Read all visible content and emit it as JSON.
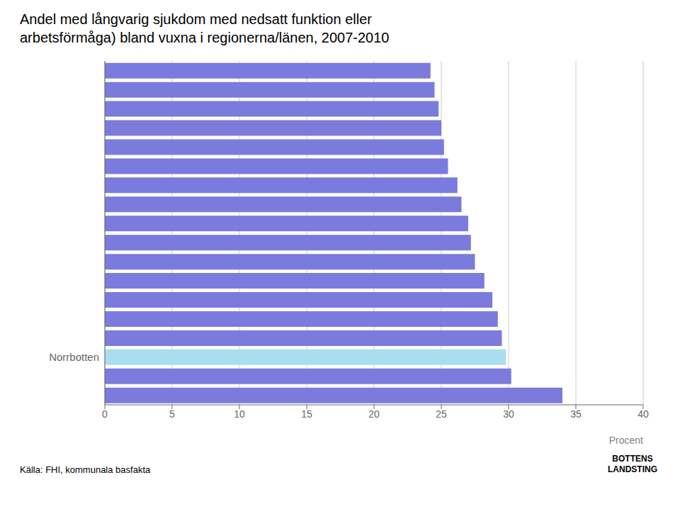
{
  "chart_data": {
    "type": "bar",
    "orientation": "horizontal",
    "title": "Andel med långvarig sjukdom med nedsatt funktion eller\narbetsförmåga) bland vuxna i regionerna/länen, 2007-2010",
    "xlabel": "Procent",
    "annotations": [
      "Källa: FHI, kommunala basfakta",
      "BOTTENS\nLANDSTING"
    ],
    "categories": [
      null,
      null,
      null,
      null,
      null,
      null,
      null,
      null,
      null,
      null,
      null,
      null,
      null,
      null,
      null,
      "Norrbotten",
      null,
      null
    ],
    "values": [
      24.2,
      24.5,
      24.8,
      25.0,
      25.2,
      25.5,
      26.2,
      26.5,
      27.0,
      27.2,
      27.5,
      28.2,
      28.8,
      29.2,
      29.5,
      29.8,
      30.2,
      34.0
    ],
    "colors": [
      "#7B7BDD",
      "#7B7BDD",
      "#7B7BDD",
      "#7B7BDD",
      "#7B7BDD",
      "#7B7BDD",
      "#7B7BDD",
      "#7B7BDD",
      "#7B7BDD",
      "#7B7BDD",
      "#7B7BDD",
      "#7B7BDD",
      "#7B7BDD",
      "#7B7BDD",
      "#7B7BDD",
      "#AADDEE",
      "#7B7BDD",
      "#7B7BDD"
    ],
    "xlim": [
      0,
      40
    ],
    "xticks": [
      0,
      5,
      10,
      15,
      20,
      25,
      30,
      35,
      40
    ],
    "grid": true
  }
}
